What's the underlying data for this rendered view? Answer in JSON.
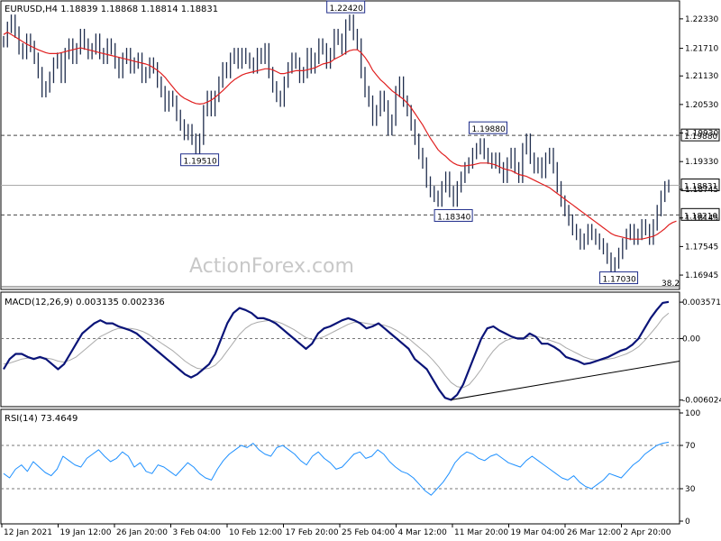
{
  "chart_data": {
    "type": "line",
    "instrument_header": "EURUSD,H4  1.18839 1.18868 1.18814 1.18831",
    "watermark": "ActionForex.com",
    "price_panel": {
      "ylim": [
        1.167,
        1.2265
      ],
      "ticks": [
        "1.22330",
        "1.21710",
        "1.21130",
        "1.20530",
        "1.19930",
        "1.19330",
        "1.18745",
        "1.18145",
        "1.17545",
        "1.16945"
      ],
      "tick_values": [
        1.2233,
        1.2171,
        1.2113,
        1.2053,
        1.1993,
        1.1933,
        1.18745,
        1.18145,
        1.17545,
        1.16945
      ],
      "hlines": [
        {
          "value": 1.1988,
          "label": "1.19880",
          "dashed": true
        },
        {
          "value": 1.1821,
          "label": "1.18210",
          "dashed": true
        },
        {
          "value": 1.18831,
          "label": "1.18831",
          "dashed": false
        }
      ],
      "fib_label": "38.2",
      "annotations": [
        {
          "text": "1.22420",
          "value": 1.2242,
          "bar": 89
        },
        {
          "text": "1.19510",
          "value": 1.1951,
          "bar": 51
        },
        {
          "text": "1.19880",
          "value": 1.1988,
          "bar": 126
        },
        {
          "text": "1.18340",
          "value": 1.1834,
          "bar": 117
        },
        {
          "text": "1.17030",
          "value": 1.1703,
          "bar": 160
        }
      ],
      "close": [
        1.2185,
        1.2215,
        1.223,
        1.2205,
        1.217,
        1.216,
        1.219,
        1.2175,
        1.215,
        1.212,
        1.208,
        1.209,
        1.211,
        1.214,
        1.215,
        1.211,
        1.216,
        1.218,
        1.215,
        1.217,
        1.22,
        1.218,
        1.216,
        1.217,
        1.219,
        1.216,
        1.215,
        1.218,
        1.217,
        1.214,
        1.212,
        1.215,
        1.216,
        1.213,
        1.214,
        1.215,
        1.211,
        1.212,
        1.214,
        1.213,
        1.21,
        1.208,
        1.205,
        1.207,
        1.206,
        1.203,
        1.201,
        1.199,
        1.2,
        1.198,
        1.196,
        1.198,
        1.204,
        1.207,
        1.204,
        1.207,
        1.21,
        1.213,
        1.212,
        1.215,
        1.216,
        1.214,
        1.216,
        1.215,
        1.214,
        1.213,
        1.216,
        1.215,
        1.217,
        1.212,
        1.209,
        1.207,
        1.206,
        1.21,
        1.213,
        1.215,
        1.214,
        1.211,
        1.212,
        1.216,
        1.213,
        1.215,
        1.218,
        1.217,
        1.214,
        1.216,
        1.22,
        1.219,
        1.217,
        1.222,
        1.223,
        1.22,
        1.218,
        1.212,
        1.208,
        1.206,
        1.202,
        1.204,
        1.207,
        1.205,
        1.2,
        1.202,
        1.208,
        1.21,
        1.206,
        1.204,
        1.201,
        1.198,
        1.195,
        1.193,
        1.189,
        1.187,
        1.186,
        1.185,
        1.188,
        1.19,
        1.187,
        1.185,
        1.188,
        1.19,
        1.192,
        1.193,
        1.195,
        1.196,
        1.197,
        1.195,
        1.194,
        1.193,
        1.194,
        1.192,
        1.19,
        1.193,
        1.195,
        1.192,
        1.19,
        1.196,
        1.198,
        1.194,
        1.192,
        1.193,
        1.191,
        1.194,
        1.195,
        1.192,
        1.188,
        1.185,
        1.183,
        1.181,
        1.179,
        1.178,
        1.176,
        1.177,
        1.179,
        1.178,
        1.177,
        1.176,
        1.175,
        1.173,
        1.171,
        1.172,
        1.174,
        1.176,
        1.178,
        1.179,
        1.177,
        1.178,
        1.18,
        1.179,
        1.177,
        1.18,
        1.183,
        1.186,
        1.188,
        1.1883
      ],
      "ma": [
        1.22,
        1.2205,
        1.22,
        1.2195,
        1.219,
        1.2185,
        1.218,
        1.2176,
        1.2172,
        1.2168,
        1.2165,
        1.2162,
        1.216,
        1.216,
        1.216,
        1.2162,
        1.2164,
        1.2166,
        1.2168,
        1.217,
        1.2172,
        1.217,
        1.2168,
        1.2166,
        1.2164,
        1.2162,
        1.216,
        1.2158,
        1.2156,
        1.2154,
        1.2152,
        1.215,
        1.2148,
        1.2146,
        1.2144,
        1.2142,
        1.214,
        1.2138,
        1.2135,
        1.213,
        1.2125,
        1.2118,
        1.211,
        1.21,
        1.209,
        1.208,
        1.2072,
        1.2066,
        1.2062,
        1.2058,
        1.2055,
        1.2054,
        1.2055,
        1.2058,
        1.2062,
        1.2068,
        1.2075,
        1.2082,
        1.209,
        1.2098,
        1.2105,
        1.211,
        1.2115,
        1.2118,
        1.212,
        1.2122,
        1.2124,
        1.2126,
        1.2128,
        1.2128,
        1.2126,
        1.2122,
        1.2118,
        1.2118,
        1.212,
        1.2122,
        1.2124,
        1.2124,
        1.2124,
        1.2126,
        1.2128,
        1.213,
        1.2134,
        1.2138,
        1.214,
        1.2142,
        1.2148,
        1.2152,
        1.2156,
        1.2162,
        1.2166,
        1.2168,
        1.2168,
        1.2162,
        1.2152,
        1.214,
        1.2125,
        1.2115,
        1.2105,
        1.2098,
        1.209,
        1.2082,
        1.2076,
        1.207,
        1.2064,
        1.2056,
        1.2046,
        1.2034,
        1.2022,
        1.201,
        1.1996,
        1.1982,
        1.197,
        1.1958,
        1.195,
        1.1944,
        1.1936,
        1.193,
        1.1926,
        1.1924,
        1.1924,
        1.1925,
        1.1926,
        1.1928,
        1.193,
        1.193,
        1.193,
        1.1928,
        1.1926,
        1.1922,
        1.1918,
        1.1916,
        1.1914,
        1.191,
        1.1906,
        1.1904,
        1.1902,
        1.1898,
        1.1894,
        1.189,
        1.1886,
        1.1882,
        1.1878,
        1.1872,
        1.1866,
        1.186,
        1.1854,
        1.1848,
        1.1842,
        1.1836,
        1.183,
        1.1824,
        1.1818,
        1.1812,
        1.1806,
        1.18,
        1.1794,
        1.1788,
        1.1782,
        1.1778,
        1.1776,
        1.1774,
        1.1772,
        1.177,
        1.177,
        1.177,
        1.177,
        1.1772,
        1.1774,
        1.1776,
        1.178,
        1.1786,
        1.1792,
        1.18,
        1.1805,
        1.1808
      ]
    },
    "macd_panel": {
      "label": "MACD(12,26,9) 0.003135 0.002336",
      "ylim": [
        -0.0064,
        0.0042
      ],
      "ticks": [
        "0.003571",
        "0.00",
        "-0.006024"
      ],
      "tick_values": [
        0.003571,
        0.0,
        -0.006024
      ],
      "macd": [
        -0.003,
        -0.002,
        -0.0015,
        -0.0015,
        -0.0018,
        -0.002,
        -0.0018,
        -0.002,
        -0.0025,
        -0.003,
        -0.0025,
        -0.0015,
        -0.0005,
        0.0005,
        0.001,
        0.0015,
        0.0018,
        0.0015,
        0.0015,
        0.0012,
        0.001,
        0.0008,
        0.0005,
        0.0,
        -0.0005,
        -0.001,
        -0.0015,
        -0.002,
        -0.0025,
        -0.003,
        -0.0035,
        -0.0038,
        -0.0035,
        -0.003,
        -0.0025,
        -0.0015,
        0.0,
        0.0015,
        0.0025,
        0.003,
        0.0028,
        0.0025,
        0.002,
        0.002,
        0.0018,
        0.0015,
        0.001,
        0.0005,
        0.0,
        -0.0005,
        -0.001,
        -0.0005,
        0.0005,
        0.001,
        0.0012,
        0.0015,
        0.0018,
        0.002,
        0.0018,
        0.0015,
        0.001,
        0.0012,
        0.0015,
        0.001,
        0.0005,
        0.0,
        -0.0005,
        -0.001,
        -0.002,
        -0.0025,
        -0.003,
        -0.004,
        -0.005,
        -0.0058,
        -0.006,
        -0.0055,
        -0.0045,
        -0.003,
        -0.0015,
        0.0,
        0.001,
        0.0012,
        0.0008,
        0.0005,
        0.0002,
        0.0,
        0.0,
        0.0005,
        0.0002,
        -0.0005,
        -0.0005,
        -0.0008,
        -0.0012,
        -0.0018,
        -0.002,
        -0.0022,
        -0.0025,
        -0.0024,
        -0.0022,
        -0.002,
        -0.0018,
        -0.0015,
        -0.0012,
        -0.001,
        -0.0006,
        0.0,
        0.001,
        0.002,
        0.0028,
        0.0035,
        0.0036
      ],
      "signal": [
        -0.0025,
        -0.0024,
        -0.0022,
        -0.002,
        -0.0019,
        -0.0019,
        -0.0019,
        -0.0019,
        -0.002,
        -0.0022,
        -0.0023,
        -0.0021,
        -0.0018,
        -0.0013,
        -0.0008,
        -0.0003,
        0.0002,
        0.0005,
        0.0008,
        0.001,
        0.001,
        0.001,
        0.0009,
        0.0007,
        0.0004,
        0.0,
        -0.0004,
        -0.0008,
        -0.0012,
        -0.0017,
        -0.0022,
        -0.0026,
        -0.0029,
        -0.003,
        -0.0029,
        -0.0026,
        -0.002,
        -0.0012,
        -0.0004,
        0.0004,
        0.001,
        0.0014,
        0.0016,
        0.0017,
        0.0018,
        0.0017,
        0.0015,
        0.0012,
        0.0009,
        0.0005,
        0.0001,
        -0.0001,
        0.0,
        0.0002,
        0.0005,
        0.0008,
        0.0011,
        0.0014,
        0.0016,
        0.0016,
        0.0015,
        0.0014,
        0.0014,
        0.0013,
        0.0011,
        0.0008,
        0.0004,
        0.0,
        -0.0005,
        -0.001,
        -0.0015,
        -0.0021,
        -0.0028,
        -0.0036,
        -0.0043,
        -0.0047,
        -0.0048,
        -0.0045,
        -0.0038,
        -0.003,
        -0.002,
        -0.0012,
        -0.0006,
        -0.0002,
        0.0,
        0.0001,
        0.0001,
        0.0002,
        0.0002,
        0.0001,
        -0.0001,
        -0.0003,
        -0.0005,
        -0.0009,
        -0.0012,
        -0.0015,
        -0.0018,
        -0.002,
        -0.0021,
        -0.0021,
        -0.002,
        -0.0019,
        -0.0017,
        -0.0015,
        -0.0012,
        -0.0008,
        -0.0002,
        0.0005,
        0.0012,
        0.002,
        0.0025
      ]
    },
    "rsi_panel": {
      "label": "RSI(14) 73.4649",
      "ylim": [
        0,
        100
      ],
      "ticks": [
        "100",
        "70",
        "30",
        "0"
      ],
      "tick_values": [
        100,
        70,
        30,
        0
      ],
      "levels": [
        70,
        30
      ],
      "values": [
        44,
        40,
        48,
        52,
        46,
        55,
        50,
        45,
        42,
        48,
        60,
        56,
        52,
        50,
        58,
        62,
        66,
        60,
        55,
        58,
        64,
        60,
        50,
        54,
        46,
        44,
        52,
        50,
        46,
        42,
        48,
        54,
        50,
        44,
        40,
        38,
        48,
        56,
        62,
        66,
        70,
        68,
        72,
        66,
        62,
        60,
        68,
        70,
        66,
        62,
        56,
        52,
        60,
        64,
        58,
        54,
        48,
        50,
        56,
        62,
        64,
        58,
        60,
        66,
        62,
        55,
        50,
        46,
        44,
        40,
        34,
        28,
        24,
        30,
        36,
        44,
        54,
        60,
        64,
        62,
        58,
        56,
        60,
        62,
        58,
        54,
        52,
        50,
        56,
        60,
        56,
        52,
        48,
        44,
        40,
        38,
        42,
        36,
        32,
        30,
        34,
        38,
        44,
        42,
        40,
        46,
        52,
        56,
        62,
        66,
        70,
        72,
        73
      ]
    },
    "x_ticks": [
      "12 Jan 2021",
      "19 Jan 12:00",
      "26 Jan 20:00",
      "3 Feb 04:00",
      "10 Feb 12:00",
      "17 Feb 20:00",
      "25 Feb 04:00",
      "4 Mar 12:00",
      "11 Mar 20:00",
      "19 Mar 04:00",
      "26 Mar 12:00",
      "2 Apr 20:00"
    ],
    "colors": {
      "price": "#1f2d4d",
      "ma": "#e02020",
      "macd": "#0a1478",
      "signal": "#aaaaaa",
      "rsi": "#1e90ff",
      "trendline": "#000000"
    }
  }
}
